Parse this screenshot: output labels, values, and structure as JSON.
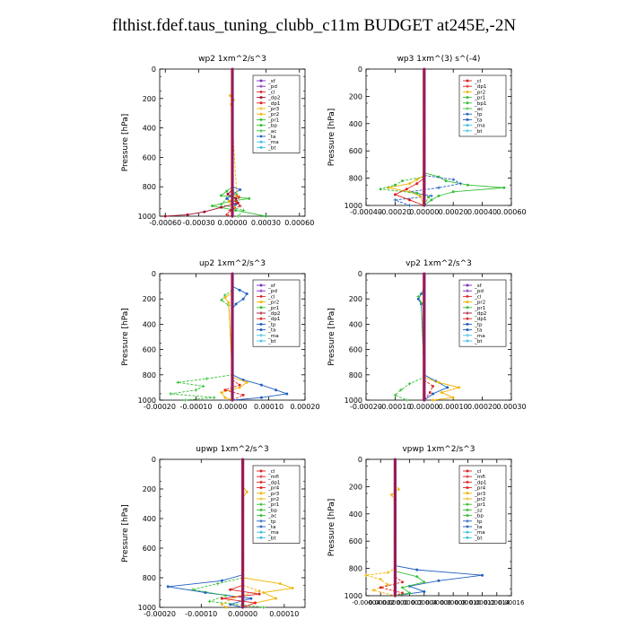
{
  "figure_title": "flthist.fdef.taus_tuning_clubb_c11m  BUDGET at245E,-2N",
  "colors": {
    "sf": "#7b2fbf",
    "pd": "#7b2fbf",
    "cl": "#e02020",
    "dp1": "#e02020",
    "dp2": "#a0102a",
    "pr1": "#38c038",
    "pr2": "#f0b400",
    "pr3": "#f0b400",
    "pr4": "#e02020",
    "bp": "#38c038",
    "bp1": "#38c038",
    "ac": "#38c038",
    "mfl": "#e02020",
    "tp": "#1f5fbf",
    "ta": "#1f5fbf",
    "ma": "#40c0e0",
    "bt": "#40c0e0",
    "sz": "#38c038",
    "thick": "#d01010"
  },
  "chart_data": [
    {
      "type": "line",
      "title": "wp2   1xm^2/s^3",
      "ylabel": "Pressure [hPa]",
      "ylim": [
        1000,
        0
      ],
      "yticks": [
        "0",
        "200",
        "400",
        "600",
        "800",
        "1000"
      ],
      "xlim": [
        -0.00065,
        0.00065
      ],
      "xticks": [
        -0.0006,
        -0.0003,
        0,
        0.0003,
        0.0006
      ],
      "xticklabels": [
        "-0.00060",
        "-0.00030",
        "0.00000",
        "0.00030",
        "0.00060"
      ],
      "legend": [
        "_sf",
        "_pd",
        "_cl",
        "_dp2",
        "_dp1",
        "_pr3",
        "_pr2",
        "_pr1",
        "_bp",
        "_ac",
        "_ta",
        "_ma",
        "_bt"
      ],
      "series": [
        {
          "key": "pr1",
          "pressure": [
            800,
            830,
            860,
            880,
            900,
            930,
            960,
            1000
          ],
          "values": [
            0,
            -5e-05,
            -0.0001,
            0.00015,
            -3e-05,
            -0.00018,
            3e-05,
            0.0003
          ]
        },
        {
          "key": "bp",
          "pressure": [
            820,
            850,
            880,
            920,
            960,
            1000
          ],
          "values": [
            0,
            4e-05,
            -5e-05,
            -0.0001,
            0.0001,
            5e-05
          ]
        },
        {
          "key": "ta",
          "pressure": [
            800,
            820,
            850,
            880,
            920,
            960,
            1000
          ],
          "values": [
            0,
            7e-05,
            0,
            -5e-05,
            3e-05,
            -1e-05,
            0
          ]
        },
        {
          "key": "pr2",
          "pressure": [
            150,
            180,
            210,
            240,
            860,
            900,
            940,
            1000
          ],
          "values": [
            0,
            -2e-05,
            1e-05,
            -1e-05,
            4e-05,
            -3e-05,
            2e-05,
            0
          ]
        },
        {
          "key": "dp2",
          "pressure": [
            820,
            850,
            880,
            910,
            940,
            970,
            990,
            1000
          ],
          "values": [
            0,
            -4e-05,
            3e-05,
            5e-05,
            -0.0001,
            -0.00025,
            -0.0004,
            -0.0006
          ]
        },
        {
          "key": "dp1",
          "pressure": [
            840,
            870,
            900,
            930,
            960,
            990,
            1000
          ],
          "values": [
            0,
            6e-05,
            3e-05,
            7e-05,
            -2e-05,
            -5e-05,
            0
          ]
        },
        {
          "key": "sf",
          "pressure": [
            0,
            1000
          ],
          "values": [
            0,
            0
          ]
        }
      ]
    },
    {
      "type": "line",
      "title": "wp3   1xm^(3) s^(-4)",
      "ylabel": "Pressure [hPa]",
      "ylim": [
        1000,
        0
      ],
      "yticks": [
        "0",
        "200",
        "400",
        "600",
        "800",
        "1000"
      ],
      "xlim": [
        -0.0004,
        0.0006
      ],
      "xticks": [
        -0.0004,
        -0.0002,
        0,
        0.0002,
        0.0004,
        0.0006
      ],
      "xticklabels": [
        "-0.00040",
        "-0.00020",
        "0.00000",
        "0.00020",
        "0.00040",
        "0.00060"
      ],
      "legend": [
        "_cl",
        "_dp1",
        "_pr2",
        "_pr1",
        "_bp1",
        "_ac",
        "_tp",
        "_ta",
        "_ma",
        "_bt"
      ],
      "series": [
        {
          "key": "bp1",
          "pressure": [
            760,
            790,
            820,
            850,
            870,
            900,
            930,
            960,
            1000
          ],
          "values": [
            0,
            0.0001,
            0.00015,
            0.0003,
            0.00055,
            0.0002,
            0.0001,
            5e-05,
            0
          ]
        },
        {
          "key": "tp",
          "pressure": [
            780,
            810,
            840,
            870,
            900,
            930,
            960,
            1000
          ],
          "values": [
            0,
            0.0002,
            0.00025,
            0.0001,
            -0.0001,
            5e-05,
            -0.0002,
            -0.0001
          ]
        },
        {
          "key": "pr2",
          "pressure": [
            780,
            810,
            840,
            870,
            900,
            930,
            1000
          ],
          "values": [
            0,
            -5e-05,
            -0.0001,
            -0.00025,
            -0.0001,
            -3e-05,
            0
          ]
        },
        {
          "key": "pr1",
          "pressure": [
            790,
            820,
            850,
            880,
            910,
            940,
            1000
          ],
          "values": [
            0,
            -0.00015,
            -0.0002,
            -0.0003,
            -5e-05,
            3e-05,
            0
          ]
        },
        {
          "key": "dp1",
          "pressure": [
            800,
            840,
            880,
            920,
            960,
            1000
          ],
          "values": [
            0,
            -5e-05,
            -0.00012,
            -0.0002,
            -0.0001,
            0
          ]
        },
        {
          "key": "cl",
          "pressure": [
            0,
            1000
          ],
          "values": [
            0,
            0
          ]
        }
      ]
    },
    {
      "type": "line",
      "title": "up2   1xm^2/s^3",
      "ylabel": "Pressure [hPa]",
      "ylim": [
        1000,
        0
      ],
      "yticks": [
        "0",
        "200",
        "400",
        "600",
        "800",
        "1000"
      ],
      "xlim": [
        -0.0002,
        0.0002
      ],
      "xticks": [
        -0.0002,
        -0.0001,
        0,
        0.0001,
        0.0002
      ],
      "xticklabels": [
        "-0.00020",
        "-0.00010",
        "0.00000",
        "0.00010",
        "0.00020"
      ],
      "legend": [
        "_sf",
        "_pd",
        "_cl",
        "_pr2",
        "_pr1",
        "_dp2",
        "_dp1",
        "_tp",
        "_ta",
        "_ma",
        "_bt"
      ],
      "series": [
        {
          "key": "tp",
          "pressure": [
            100,
            130,
            160,
            200,
            240,
            280,
            800,
            840,
            880,
            920,
            950,
            980,
            1000
          ],
          "values": [
            0,
            2e-05,
            4e-05,
            3e-05,
            1e-05,
            0,
            0,
            3e-05,
            8e-05,
            0.00012,
            0.00015,
            8e-05,
            0
          ]
        },
        {
          "key": "pr1",
          "pressure": [
            130,
            170,
            210,
            250,
            800,
            830,
            860,
            890,
            920,
            950,
            980,
            1000
          ],
          "values": [
            0,
            -2e-05,
            -3e-05,
            -1e-05,
            0,
            -7e-05,
            -0.00015,
            -8e-05,
            -0.0001,
            -0.00017,
            -5e-05,
            -0.00013
          ]
        },
        {
          "key": "pr2",
          "pressure": [
            150,
            190,
            230,
            820,
            860,
            900,
            940,
            980,
            1000
          ],
          "values": [
            0,
            -2e-05,
            -1e-05,
            0,
            4e-05,
            2e-05,
            -3e-05,
            -2e-05,
            0
          ]
        },
        {
          "key": "dp1",
          "pressure": [
            840,
            880,
            920,
            960,
            1000
          ],
          "values": [
            0,
            2e-05,
            -2e-05,
            3e-05,
            0
          ]
        },
        {
          "key": "sf",
          "pressure": [
            0,
            1000
          ],
          "values": [
            0,
            0
          ]
        }
      ]
    },
    {
      "type": "line",
      "title": "vp2   1xm^2/s^3",
      "ylabel": "Pressure [hPa]",
      "ylim": [
        1000,
        0
      ],
      "yticks": [
        "0",
        "200",
        "400",
        "600",
        "800",
        "1000"
      ],
      "xlim": [
        -0.0002,
        0.0003
      ],
      "xticks": [
        -0.0002,
        -0.0001,
        0,
        0.0001,
        0.0002,
        0.0003
      ],
      "xticklabels": [
        "-0.00020",
        "-0.00010",
        "0.00000",
        "0.00010",
        "0.00020",
        "0.00030"
      ],
      "legend": [
        "_sf",
        "_pd",
        "_cl",
        "_pr2",
        "_pr1",
        "_dp2",
        "_dp1",
        "_tp",
        "_ta",
        "_ma",
        "_bt"
      ],
      "series": [
        {
          "key": "tp",
          "pressure": [
            120,
            160,
            200,
            240,
            800,
            850,
            900,
            950,
            1000
          ],
          "values": [
            0,
            -1e-05,
            -2e-05,
            -1e-05,
            0,
            4e-05,
            8e-05,
            3e-05,
            0
          ]
        },
        {
          "key": "pr1",
          "pressure": [
            130,
            180,
            230,
            820,
            870,
            920,
            960,
            1000
          ],
          "values": [
            0,
            -2e-05,
            -1e-05,
            0,
            -5e-05,
            -8e-05,
            -0.0001,
            -6e-05
          ]
        },
        {
          "key": "pr2",
          "pressure": [
            820,
            860,
            900,
            940,
            980,
            1000
          ],
          "values": [
            0,
            5e-05,
            0.00012,
            6e-05,
            0.0001,
            3e-05
          ]
        },
        {
          "key": "dp1",
          "pressure": [
            840,
            890,
            940,
            1000
          ],
          "values": [
            0,
            3e-05,
            2e-05,
            0
          ]
        },
        {
          "key": "sf",
          "pressure": [
            0,
            1000
          ],
          "values": [
            0,
            0
          ]
        }
      ]
    },
    {
      "type": "line",
      "title": "upwp   1xm^2/s^3",
      "ylabel": "Pressure [hPa]",
      "ylim": [
        1000,
        0
      ],
      "yticks": [
        "0",
        "200",
        "400",
        "600",
        "800",
        "1000"
      ],
      "xlim": [
        -0.0002,
        0.00015
      ],
      "xticks": [
        -0.0002,
        -0.0001,
        0,
        0.0001
      ],
      "xticklabels": [
        "-0.00020",
        "-0.00010",
        "0.00000",
        "0.00010"
      ],
      "legend": [
        "_cl",
        "_mfl",
        "_dp1",
        "_pr4",
        "_pr3",
        "_pr2",
        "_pr1",
        "_bp",
        "_ac",
        "_tp",
        "_ta",
        "_ma",
        "_bt"
      ],
      "series": [
        {
          "key": "tp",
          "pressure": [
            780,
            820,
            860,
            900,
            940,
            980,
            1000
          ],
          "values": [
            0,
            -5e-05,
            -0.00018,
            -9e-05,
            2e-05,
            -3e-05,
            0
          ]
        },
        {
          "key": "pr1",
          "pressure": [
            800,
            840,
            880,
            920,
            960,
            1000
          ],
          "values": [
            0,
            -6e-05,
            -0.00012,
            -4e-05,
            -8e-05,
            5e-05
          ]
        },
        {
          "key": "pr2",
          "pressure": [
            180,
            220,
            260,
            800,
            840,
            870,
            900,
            940,
            970,
            1000
          ],
          "values": [
            0,
            1e-05,
            0,
            0,
            9e-05,
            0.00012,
            5e-05,
            8e-05,
            3e-05,
            0
          ]
        },
        {
          "key": "pr3",
          "pressure": [
            850,
            890,
            930,
            980,
            1000
          ],
          "values": [
            0,
            4e-05,
            -2e-05,
            -5e-05,
            -4e-05
          ]
        },
        {
          "key": "dp1",
          "pressure": [
            850,
            880,
            910,
            940,
            970,
            1000
          ],
          "values": [
            0,
            -3e-05,
            4e-05,
            -5e-05,
            3e-05,
            0
          ]
        },
        {
          "key": "cl",
          "pressure": [
            0,
            1000
          ],
          "values": [
            0,
            0
          ]
        }
      ]
    },
    {
      "type": "line",
      "title": "vpwp   1xm^2/s^3",
      "ylabel": "Pressure [hPa]",
      "ylim": [
        1000,
        0
      ],
      "yticks": [
        "0",
        "200",
        "400",
        "600",
        "800",
        "1000"
      ],
      "xlim": [
        -4e-05,
        0.00016
      ],
      "xticks": [
        -4e-05,
        -2e-05,
        0,
        2e-05,
        4e-05,
        6e-05,
        8e-05,
        0.0001,
        0.00012,
        0.00014,
        0.00016
      ],
      "xticklabels": [
        "-0.00004",
        "-0.00002",
        "0.00000",
        "0.00002",
        "0.00004",
        "0.00006",
        "0.00008",
        "0.00010",
        "0.00012",
        "0.00014",
        "0.00016"
      ],
      "legend": [
        "_cl",
        "_mfl",
        "_dp1",
        "_pr4",
        "_pr3",
        "_pr2",
        "_pr1",
        "_sz",
        "_bp",
        "_tp",
        "_ta",
        "_ma",
        "_bt"
      ],
      "series": [
        {
          "key": "tp",
          "pressure": [
            780,
            810,
            850,
            890,
            930,
            970,
            1000
          ],
          "values": [
            0,
            3e-05,
            0.00012,
            6e-05,
            2e-05,
            4e-05,
            0
          ]
        },
        {
          "key": "pr2",
          "pressure": [
            180,
            220,
            260,
            300,
            800,
            830,
            850,
            880,
            920,
            960,
            1000
          ],
          "values": [
            0,
            5e-06,
            -5e-06,
            0,
            0,
            -1e-05,
            -4e-05,
            -2e-05,
            -1e-05,
            -3e-05,
            0
          ]
        },
        {
          "key": "pr1",
          "pressure": [
            820,
            860,
            900,
            940,
            980,
            1000
          ],
          "values": [
            0,
            3e-05,
            4e-05,
            1e-05,
            2e-05,
            0
          ]
        },
        {
          "key": "dp1",
          "pressure": [
            860,
            900,
            940,
            980,
            1000
          ],
          "values": [
            0,
            1e-05,
            -2e-05,
            1e-05,
            0
          ]
        },
        {
          "key": "cl",
          "pressure": [
            0,
            1000
          ],
          "values": [
            0,
            0
          ]
        }
      ]
    }
  ]
}
